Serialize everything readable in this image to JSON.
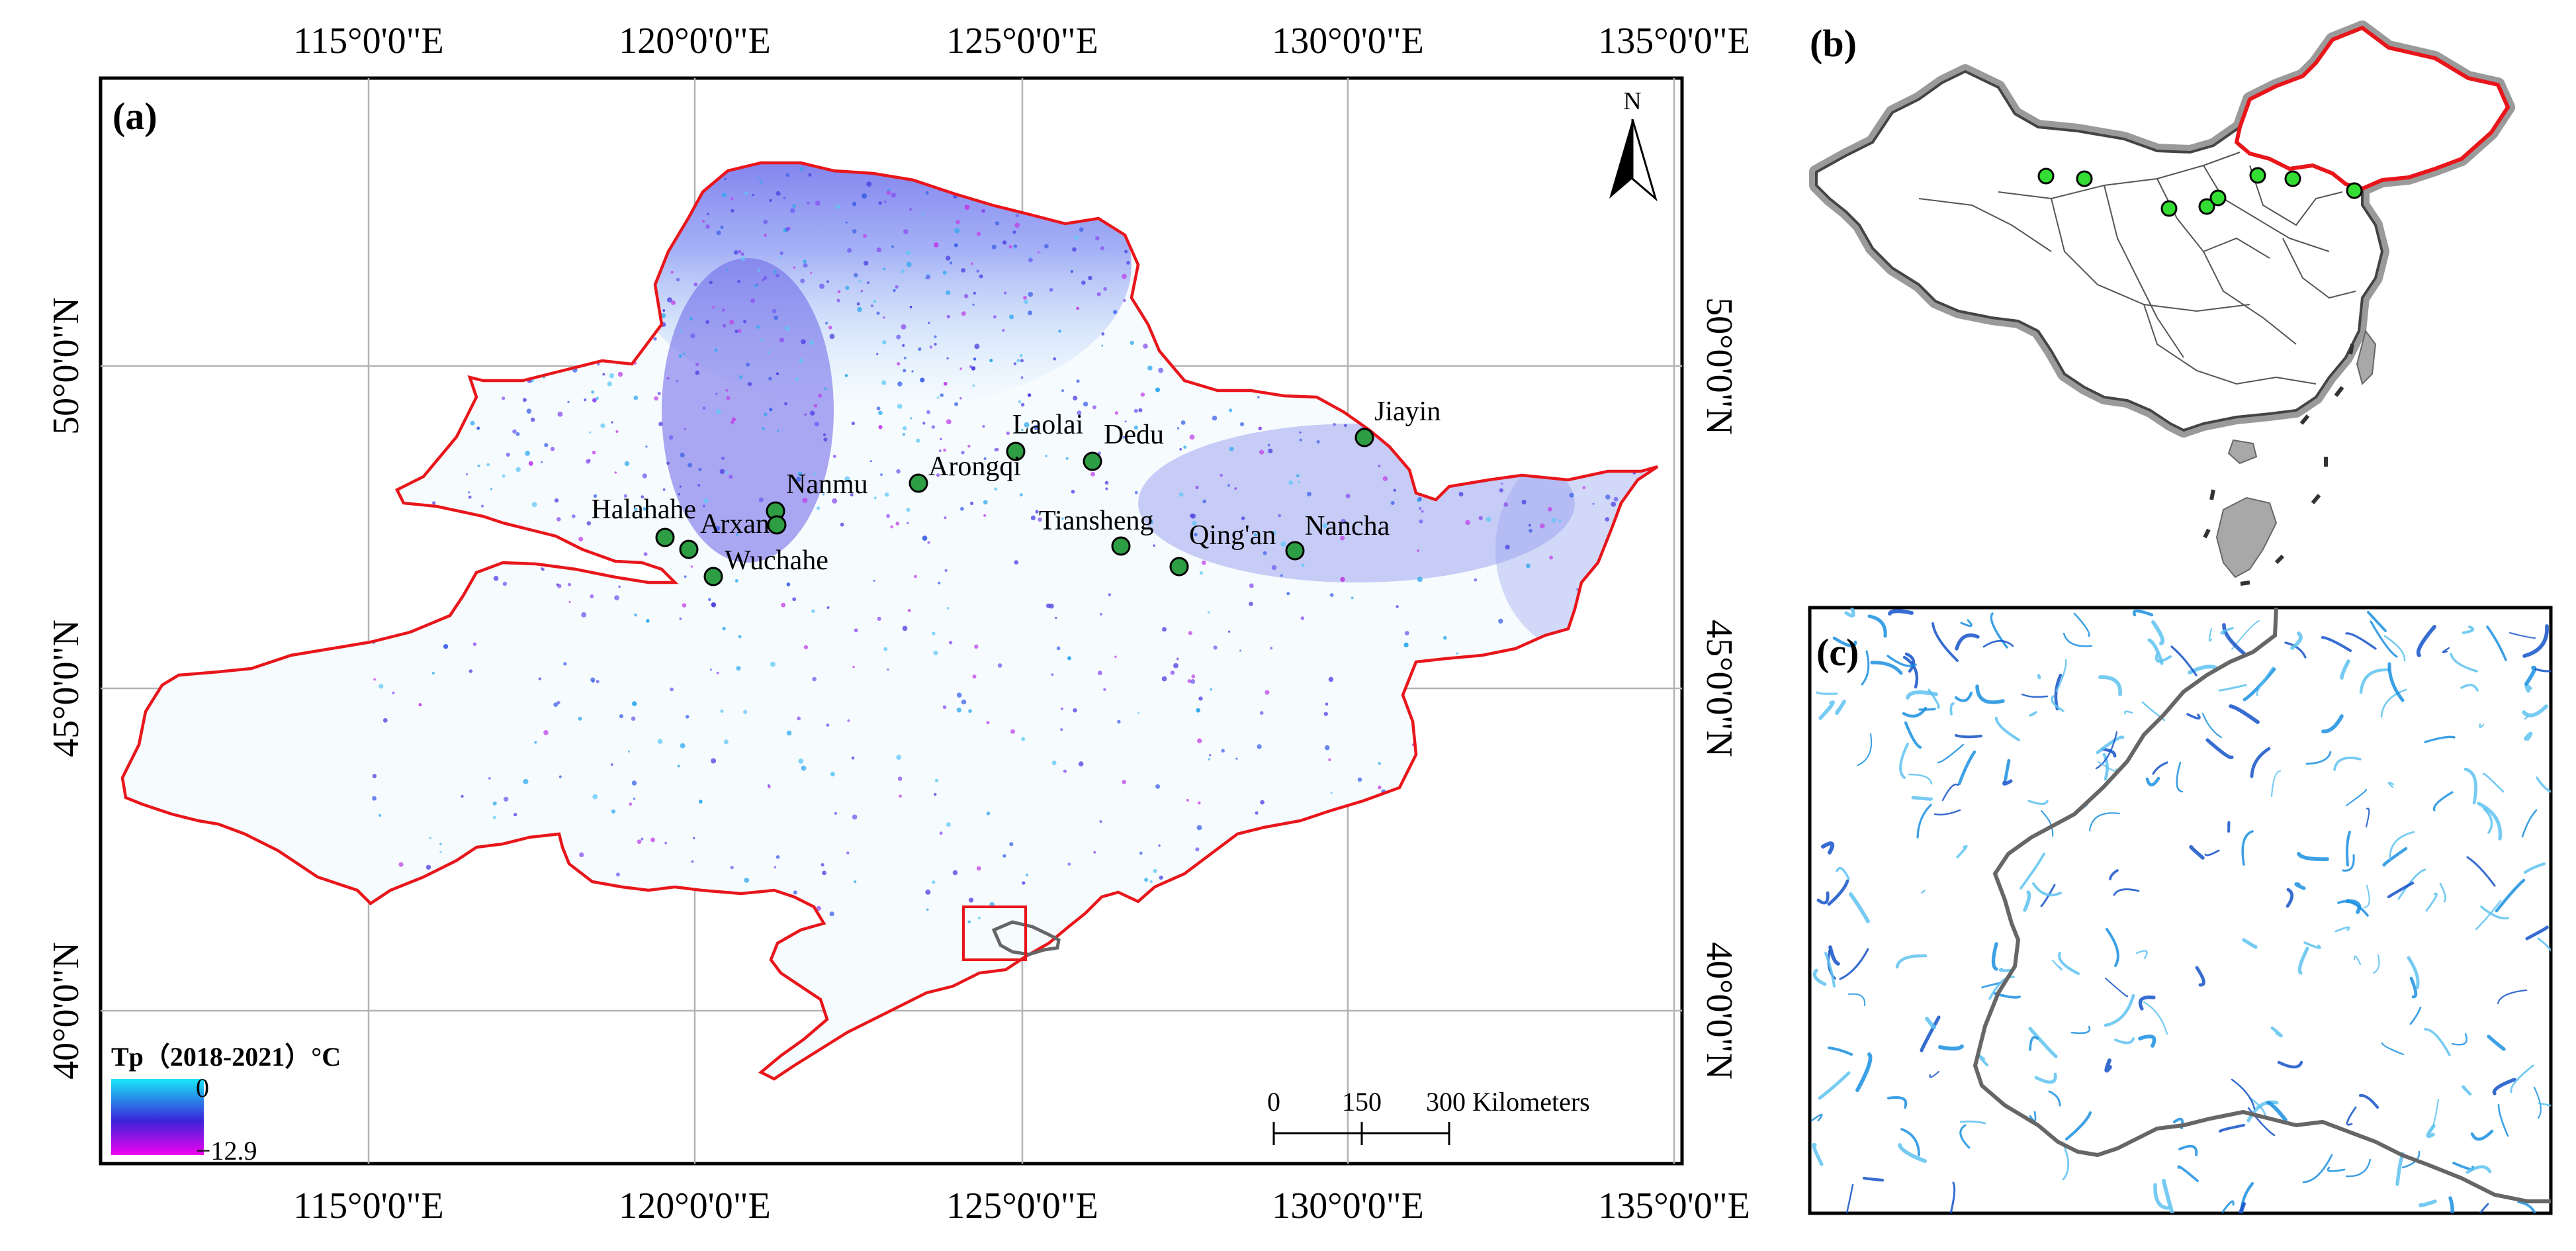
{
  "panel_a": {
    "label": "(a)",
    "x_ticks": [
      "115°0'0\"E",
      "120°0'0\"E",
      "125°0'0\"E",
      "130°0'0\"E",
      "135°0'0\"E"
    ],
    "y_ticks": [
      "50°0'0\"N",
      "45°0'0\"N",
      "40°0'0\"N"
    ],
    "north_label": "N",
    "legend": {
      "title": "Tp（2018-2021）°C",
      "max": "0",
      "min": "−12.9",
      "color_top": "#18e8f8",
      "color_mid": "#3a24d8",
      "color_bottom": "#f000f0"
    },
    "scale_bar": {
      "labels": [
        "0",
        "150",
        "300 Kilometers"
      ]
    },
    "sites": [
      {
        "name": "Jiayin"
      },
      {
        "name": "Laolai"
      },
      {
        "name": "Dedu"
      },
      {
        "name": "Arongqi"
      },
      {
        "name": "Nanmu"
      },
      {
        "name": "Halahahe"
      },
      {
        "name": "Arxan"
      },
      {
        "name": "Wuchahe"
      },
      {
        "name": "Tiansheng"
      },
      {
        "name": "Qing'an"
      },
      {
        "name": "Nancha"
      }
    ],
    "boundary_color": "#e8161b",
    "site_color": "#2e9e44"
  },
  "panel_b": {
    "label": "(b)",
    "highlight_color": "#e8161b",
    "site_color": "#33dd33"
  },
  "panel_c": {
    "label": "(c)",
    "stream_color": "#1a8fe0"
  }
}
